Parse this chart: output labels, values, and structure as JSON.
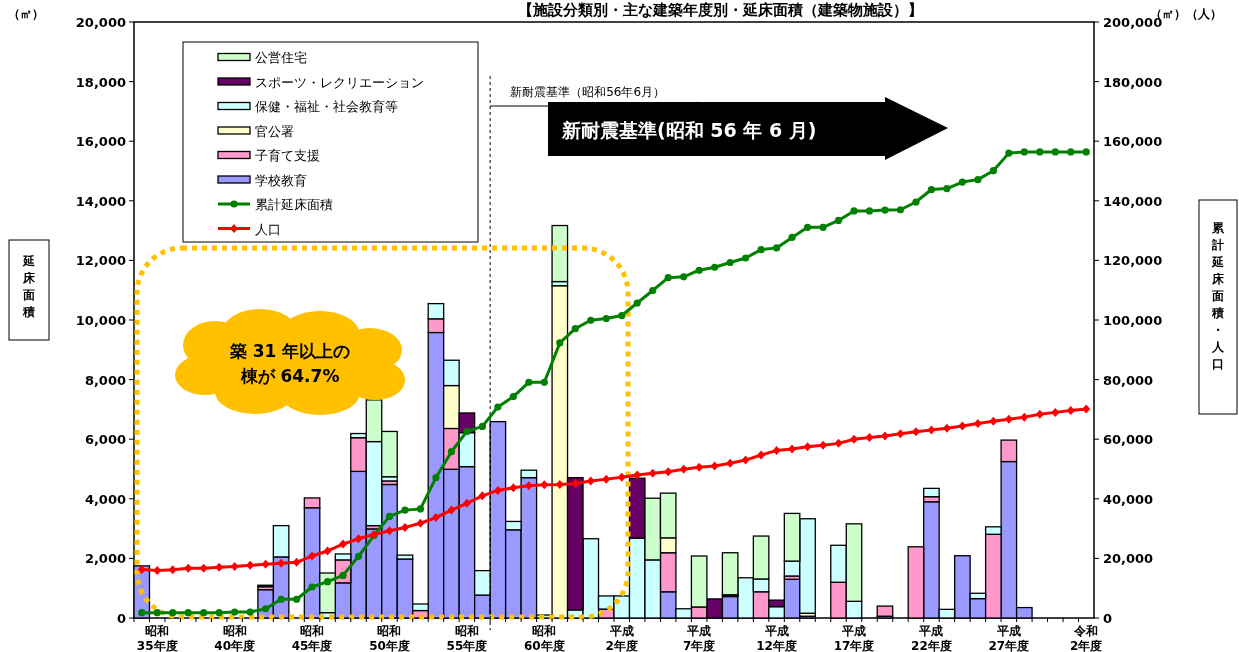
{
  "chart_data": {
    "type": "bar",
    "stacked": true,
    "title": "【施設分類別・主な建築年度別・延床面積（建築物施設）】",
    "ylabel": "延床面積",
    "y2label": "累計延床面積・人口",
    "categories": [
      null,
      "昭和\n35年度",
      null,
      null,
      null,
      null,
      "昭和\n40年度",
      null,
      null,
      null,
      null,
      "昭和\n45年度",
      null,
      null,
      null,
      null,
      "昭和\n50年度",
      null,
      null,
      null,
      null,
      "昭和\n55年度",
      null,
      null,
      null,
      null,
      "昭和\n60年度",
      null,
      null,
      null,
      null,
      "平成\n2年度",
      null,
      null,
      null,
      null,
      "平成\n7年度",
      null,
      null,
      null,
      null,
      "平成\n12年度",
      null,
      null,
      null,
      null,
      "平成\n17年度",
      null,
      null,
      null,
      null,
      "平成\n22年度",
      null,
      null,
      null,
      null,
      "平成\n27年度",
      null,
      null,
      null,
      null,
      "令和\n2年度"
    ],
    "ylim": [
      0,
      20000
    ],
    "yticks": [
      0,
      {
        "value": 2000,
        "label": "2,000"
      },
      {
        "value": 4000,
        "label": "4,000"
      },
      {
        "value": 6000,
        "label": "6,000"
      },
      {
        "value": 8000,
        "label": "8,000"
      },
      {
        "value": 10000,
        "label": "10,000"
      },
      {
        "value": 12000,
        "label": "12,000"
      },
      {
        "value": 14000,
        "label": "14,000"
      },
      {
        "value": 16000,
        "label": "16,000"
      },
      {
        "value": 18000,
        "label": "18,000"
      },
      {
        "value": 20000,
        "label": "20,000"
      }
    ],
    "y2lim": [
      0,
      200000
    ],
    "y2ticks": [
      0,
      {
        "value": 20000,
        "label": "20,000"
      },
      {
        "value": 40000,
        "label": "40,000"
      },
      {
        "value": 60000,
        "label": "60,000"
      },
      {
        "value": 80000,
        "label": "80,000"
      },
      {
        "value": 100000,
        "label": "100,000"
      },
      {
        "value": 120000,
        "label": "120,000"
      },
      {
        "value": 140000,
        "label": "140,000"
      },
      {
        "value": 160000,
        "label": "160,000"
      },
      {
        "value": 180000,
        "label": "180,000"
      },
      {
        "value": 200000,
        "label": "200,000"
      }
    ],
    "legend": "top left",
    "series": [
      {
        "name": "学校教育",
        "color": "#9999ff",
        "values": [
          1750,
          null,
          null,
          null,
          null,
          null,
          null,
          null,
          950,
          2050,
          null,
          3700,
          null,
          1180,
          4920,
          2990,
          4480,
          1980,
          null,
          9580,
          4990,
          5080,
          770,
          6590,
          2960,
          4710,
          null,
          null,
          null,
          null,
          null,
          null,
          null,
          null,
          880,
          null,
          null,
          null,
          720,
          null,
          null,
          null,
          1300,
          60,
          null,
          null,
          null,
          null,
          60,
          null,
          null,
          3900,
          null,
          2090,
          650,
          null,
          5250,
          350,
          null,
          null,
          null,
          null
        ]
      },
      {
        "name": "子育て支援",
        "color": "#ff99cc",
        "values": [
          null,
          null,
          null,
          null,
          null,
          null,
          null,
          null,
          100,
          null,
          null,
          330,
          null,
          770,
          1130,
          110,
          120,
          null,
          250,
          460,
          1370,
          null,
          null,
          null,
          null,
          null,
          null,
          null,
          null,
          null,
          300,
          null,
          null,
          null,
          1310,
          null,
          370,
          null,
          null,
          null,
          880,
          null,
          110,
          null,
          null,
          1200,
          null,
          null,
          340,
          null,
          2390,
          170,
          null,
          null,
          null,
          2810,
          720,
          null,
          null,
          null,
          null,
          null
        ]
      },
      {
        "name": "官公署",
        "color": "#ffffcc",
        "values": [
          null,
          null,
          null,
          null,
          null,
          null,
          null,
          null,
          null,
          null,
          null,
          null,
          null,
          null,
          null,
          null,
          null,
          null,
          null,
          null,
          1440,
          null,
          null,
          null,
          null,
          null,
          null,
          11150,
          null,
          null,
          null,
          null,
          null,
          null,
          500,
          null,
          null,
          null,
          null,
          null,
          null,
          null,
          null,
          100,
          null,
          null,
          null,
          null,
          null,
          null,
          null,
          null,
          null,
          null,
          null,
          null,
          null,
          null,
          null,
          null,
          null,
          null
        ]
      },
      {
        "name": "保健・福祉・社会教育等",
        "color": "#ccffff",
        "values": [
          null,
          null,
          null,
          null,
          null,
          null,
          null,
          null,
          null,
          1050,
          null,
          null,
          180,
          200,
          140,
          2820,
          140,
          130,
          220,
          510,
          850,
          1140,
          820,
          null,
          280,
          250,
          null,
          140,
          270,
          2660,
          440,
          740,
          2680,
          1950,
          null,
          310,
          null,
          null,
          null,
          1350,
          430,
          380,
          500,
          3170,
          null,
          1240,
          560,
          null,
          null,
          null,
          null,
          280,
          290,
          null,
          180,
          250,
          null,
          null,
          null,
          null,
          null,
          null
        ]
      },
      {
        "name": "スポーツ・レクリエーション",
        "color": "#660066",
        "values": [
          null,
          null,
          null,
          null,
          null,
          null,
          null,
          null,
          50,
          null,
          null,
          null,
          null,
          null,
          null,
          null,
          null,
          null,
          null,
          null,
          null,
          660,
          null,
          null,
          null,
          null,
          null,
          null,
          4440,
          null,
          null,
          null,
          2010,
          null,
          null,
          null,
          null,
          640,
          60,
          null,
          null,
          220,
          null,
          null,
          null,
          null,
          null,
          null,
          null,
          null,
          null,
          null,
          null,
          null,
          null,
          null,
          null,
          null,
          null,
          null,
          null,
          null
        ]
      },
      {
        "name": "公営住宅",
        "color": "#ccffcc",
        "values": [
          null,
          null,
          null,
          null,
          null,
          null,
          null,
          null,
          null,
          null,
          null,
          null,
          1330,
          null,
          null,
          1400,
          1520,
          null,
          null,
          null,
          null,
          null,
          null,
          null,
          null,
          null,
          100,
          1880,
          null,
          null,
          null,
          null,
          null,
          2070,
          1500,
          null,
          1710,
          null,
          1410,
          null,
          1440,
          null,
          1600,
          null,
          null,
          null,
          2600,
          null,
          null,
          null,
          null,
          null,
          null,
          null,
          null,
          null,
          null,
          null,
          null,
          null,
          null,
          null
        ]
      },
      {
        "name": "累計延床面積",
        "type": "line",
        "axis": "y2",
        "marker": "circle",
        "color": "#008000",
        "values": [
          1800,
          1800,
          1800,
          1800,
          1800,
          1800,
          2000,
          2000,
          3100,
          6300,
          6300,
          10400,
          12200,
          14300,
          20700,
          27700,
          34100,
          36200,
          36600,
          47100,
          55800,
          62600,
          64300,
          70800,
          74300,
          79100,
          79100,
          92300,
          97100,
          99900,
          100500,
          101500,
          105700,
          109900,
          114200,
          114500,
          116700,
          117700,
          119300,
          120800,
          123600,
          124200,
          127700,
          131100,
          131100,
          133400,
          136600,
          136600,
          136900,
          137000,
          139600,
          143800,
          144100,
          146300,
          147100,
          150100,
          156000,
          156400,
          156400,
          156400,
          156400,
          156400
        ]
      },
      {
        "name": "人口",
        "type": "line",
        "axis": "y2",
        "marker": "diamond",
        "color": "#ff0000",
        "values": [
          16300,
          15900,
          16200,
          16700,
          16700,
          17000,
          17300,
          17700,
          18000,
          18400,
          18700,
          20800,
          22500,
          24800,
          26600,
          28000,
          29300,
          30400,
          31800,
          33700,
          36200,
          38500,
          41000,
          42800,
          43700,
          44400,
          44700,
          44800,
          45100,
          46000,
          46600,
          47200,
          48000,
          48600,
          49100,
          49900,
          50600,
          51000,
          51900,
          53000,
          54700,
          56200,
          56700,
          57500,
          58000,
          58600,
          60000,
          60600,
          61100,
          61800,
          62500,
          63100,
          63700,
          64400,
          65300,
          66000,
          66700,
          67400,
          68400,
          69000,
          69600,
          70100
        ]
      }
    ],
    "annotations": [
      "（㎡）",
      "（㎡）（人）",
      "新耐震基準（昭和56年6月）",
      "新耐震基準(昭和 56 年 6 月)",
      "築 31 年以上の",
      "棟が 64.7%"
    ]
  }
}
